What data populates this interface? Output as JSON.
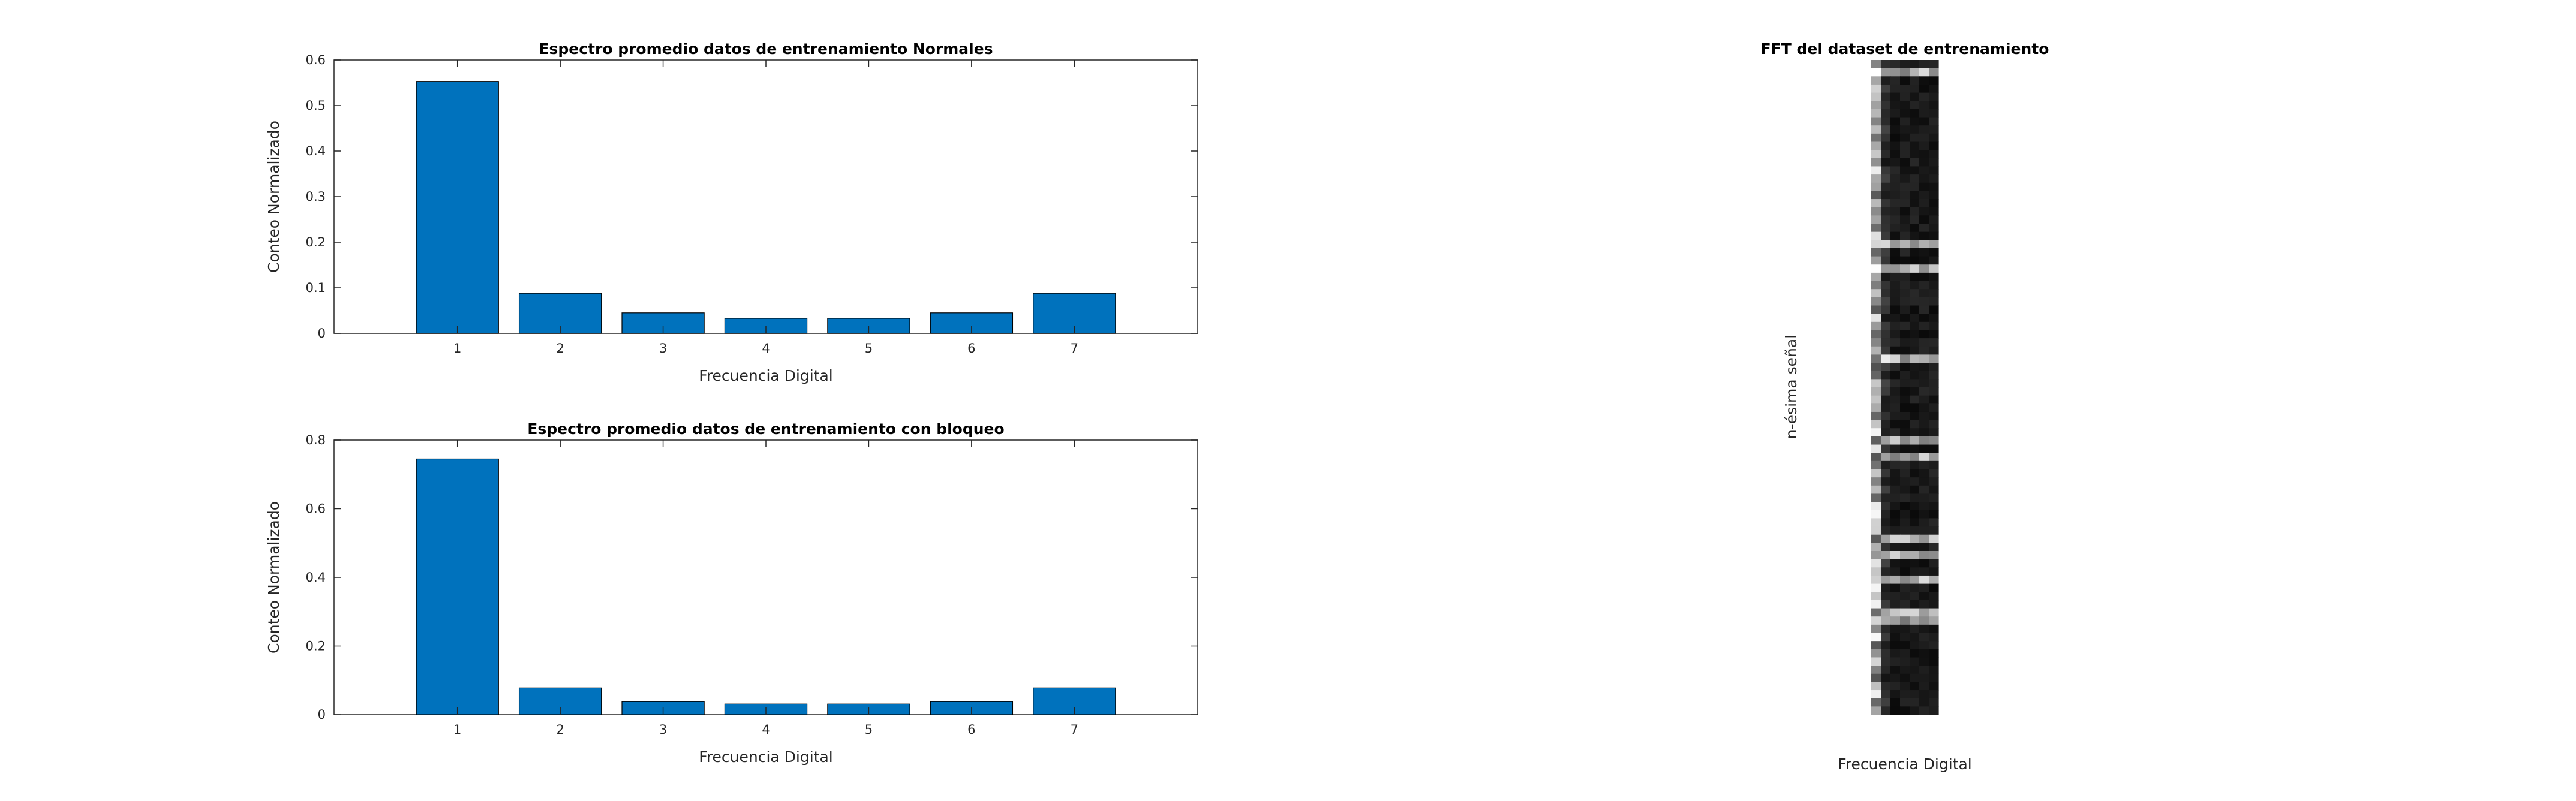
{
  "chart_data": [
    {
      "type": "bar",
      "title": "Espectro promedio datos de entrenamiento Normales",
      "xlabel": "Frecuencia Digital",
      "ylabel": "Conteo Normalizado",
      "categories": [
        "1",
        "2",
        "3",
        "4",
        "5",
        "6",
        "7"
      ],
      "values": [
        0.553,
        0.088,
        0.045,
        0.033,
        0.033,
        0.045,
        0.088
      ],
      "ylim": [
        0,
        0.6
      ],
      "yticks": [
        "0",
        "0.1",
        "0.2",
        "0.3",
        "0.4",
        "0.5",
        "0.6"
      ],
      "xlim": [
        -0.2,
        8.2
      ],
      "bar_color": "#0072BD",
      "grid": false
    },
    {
      "type": "bar",
      "title": "Espectro promedio datos de entrenamiento con bloqueo",
      "xlabel": "Frecuencia Digital",
      "ylabel": "Conteo Normalizado",
      "categories": [
        "1",
        "2",
        "3",
        "4",
        "5",
        "6",
        "7"
      ],
      "values": [
        0.745,
        0.078,
        0.038,
        0.031,
        0.031,
        0.038,
        0.078
      ],
      "ylim": [
        0,
        0.8
      ],
      "yticks": [
        "0",
        "0.2",
        "0.4",
        "0.6",
        "0.8"
      ],
      "xlim": [
        -0.2,
        8.2
      ],
      "bar_color": "#0072BD",
      "grid": false
    },
    {
      "type": "heatmap",
      "title": "FFT del dataset de entrenamiento",
      "xlabel": "Frecuencia Digital",
      "ylabel": "n-ésima señal",
      "colormap": "gray",
      "rows": 80,
      "cols": 7
    }
  ]
}
